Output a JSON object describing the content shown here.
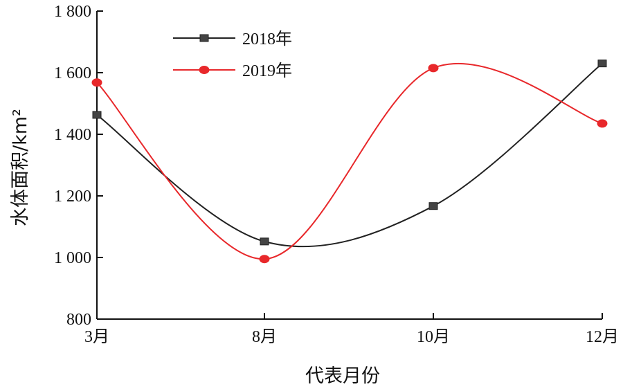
{
  "chart_data": {
    "type": "line",
    "categories": [
      "3月",
      "8月",
      "10月",
      "12月"
    ],
    "xlabel": "代表月份",
    "ylabel": "水体面积/km²",
    "ylim": [
      800,
      1800
    ],
    "yticks": [
      800,
      1000,
      1200,
      1400,
      1600,
      1800
    ],
    "ytick_labels": [
      "800",
      "1 000",
      "1 200",
      "1 400",
      "1 600",
      "1 800"
    ],
    "grid": false,
    "smooth": true,
    "legend_position": "top-left",
    "series": [
      {
        "name": "2018年",
        "values": [
          1463,
          1052,
          1167,
          1630
        ],
        "color": "#222222",
        "marker": "square"
      },
      {
        "name": "2019年",
        "values": [
          1568,
          995,
          1615,
          1435
        ],
        "color": "#e8282b",
        "marker": "circle"
      }
    ]
  }
}
